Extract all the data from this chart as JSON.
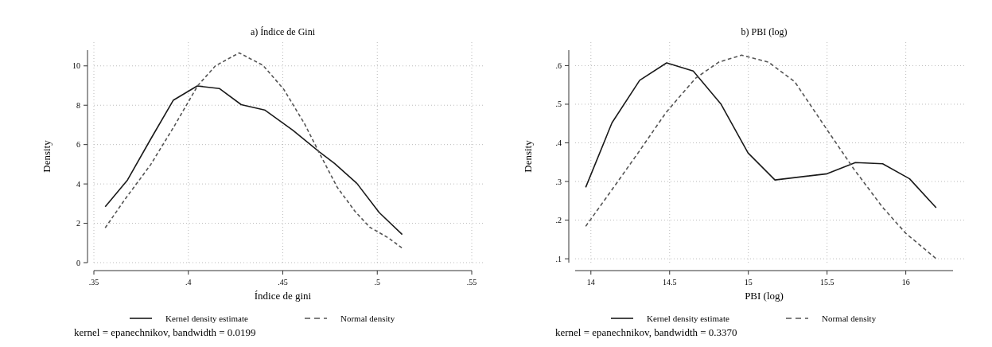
{
  "chart_data": [
    {
      "type": "line",
      "title": "a) Índice de Gini",
      "xlabel": "Índice de gini",
      "ylabel": "Density",
      "xlim": [
        0.35,
        0.55
      ],
      "xticks": [
        {
          "value": 0.35,
          "label": ".35"
        },
        {
          "value": 0.4,
          "label": ".4"
        },
        {
          "value": 0.45,
          "label": ".45"
        },
        {
          "value": 0.5,
          "label": ".5"
        },
        {
          "value": 0.55,
          "label": ".55"
        }
      ],
      "ylim": [
        0,
        10.8
      ],
      "yticks": [
        0,
        2,
        4,
        6,
        8,
        10
      ],
      "grid": true,
      "legend": "bottom",
      "annotations": [
        "kernel = epanechnikov, bandwidth = 0.0199"
      ],
      "series": [
        {
          "name": "Kernel density estimate",
          "color": "#1a1a1a",
          "line_style": "solid",
          "x": [
            0.356,
            0.3678,
            0.3799,
            0.392,
            0.4047,
            0.4164,
            0.428,
            0.4404,
            0.4553,
            0.4695,
            0.4774,
            0.4892,
            0.501,
            0.5132
          ],
          "values": [
            2.84,
            4.2,
            6.25,
            8.25,
            8.98,
            8.85,
            8.03,
            7.76,
            6.73,
            5.62,
            5.04,
            4.03,
            2.55,
            1.43
          ]
        },
        {
          "name": "Normal density",
          "color": "#555555",
          "line_style": "dashed",
          "x": [
            0.356,
            0.367,
            0.38,
            0.3925,
            0.405,
            0.4143,
            0.4269,
            0.4395,
            0.4505,
            0.4615,
            0.4693,
            0.4788,
            0.4882,
            0.496,
            0.5057,
            0.5132
          ],
          "values": [
            1.77,
            3.29,
            4.97,
            6.93,
            9.0,
            10.0,
            10.66,
            10.03,
            8.81,
            7.06,
            5.58,
            3.83,
            2.61,
            1.8,
            1.27,
            0.74
          ]
        }
      ]
    },
    {
      "type": "line",
      "title": "b) PBI (log)",
      "xlabel": "PBI (log)",
      "ylabel": "Density",
      "xlim": [
        13.9,
        16.3
      ],
      "xticks": [
        14,
        14.5,
        15,
        15.5,
        16
      ],
      "ylim": [
        0.09,
        0.64
      ],
      "yticks": [
        {
          "value": 0.1,
          "label": ".1"
        },
        {
          "value": 0.2,
          "label": ".2"
        },
        {
          "value": 0.3,
          "label": ".3"
        },
        {
          "value": 0.4,
          "label": ".4"
        },
        {
          "value": 0.5,
          "label": ".5"
        },
        {
          "value": 0.6,
          "label": ".6"
        }
      ],
      "grid": true,
      "legend": "bottom",
      "annotations": [
        "kernel = epanechnikov, bandwidth = 0.3370"
      ],
      "series": [
        {
          "name": "Kernel density estimate",
          "color": "#1a1a1a",
          "line_style": "solid",
          "x": [
            13.967,
            14.134,
            14.31,
            14.481,
            14.65,
            14.825,
            14.998,
            15.169,
            15.5,
            15.68,
            15.853,
            16.024,
            16.193
          ],
          "values": [
            0.285,
            0.452,
            0.562,
            0.607,
            0.586,
            0.501,
            0.374,
            0.304,
            0.32,
            0.349,
            0.346,
            0.307,
            0.232
          ]
        },
        {
          "name": "Normal density",
          "color": "#555555",
          "line_style": "dashed",
          "x": [
            13.967,
            14.143,
            14.31,
            14.478,
            14.664,
            14.812,
            14.957,
            15.128,
            15.295,
            15.48,
            15.667,
            15.853,
            16.0,
            16.193
          ],
          "values": [
            0.184,
            0.284,
            0.38,
            0.479,
            0.567,
            0.609,
            0.627,
            0.609,
            0.558,
            0.446,
            0.334,
            0.233,
            0.166,
            0.1
          ]
        }
      ]
    }
  ]
}
